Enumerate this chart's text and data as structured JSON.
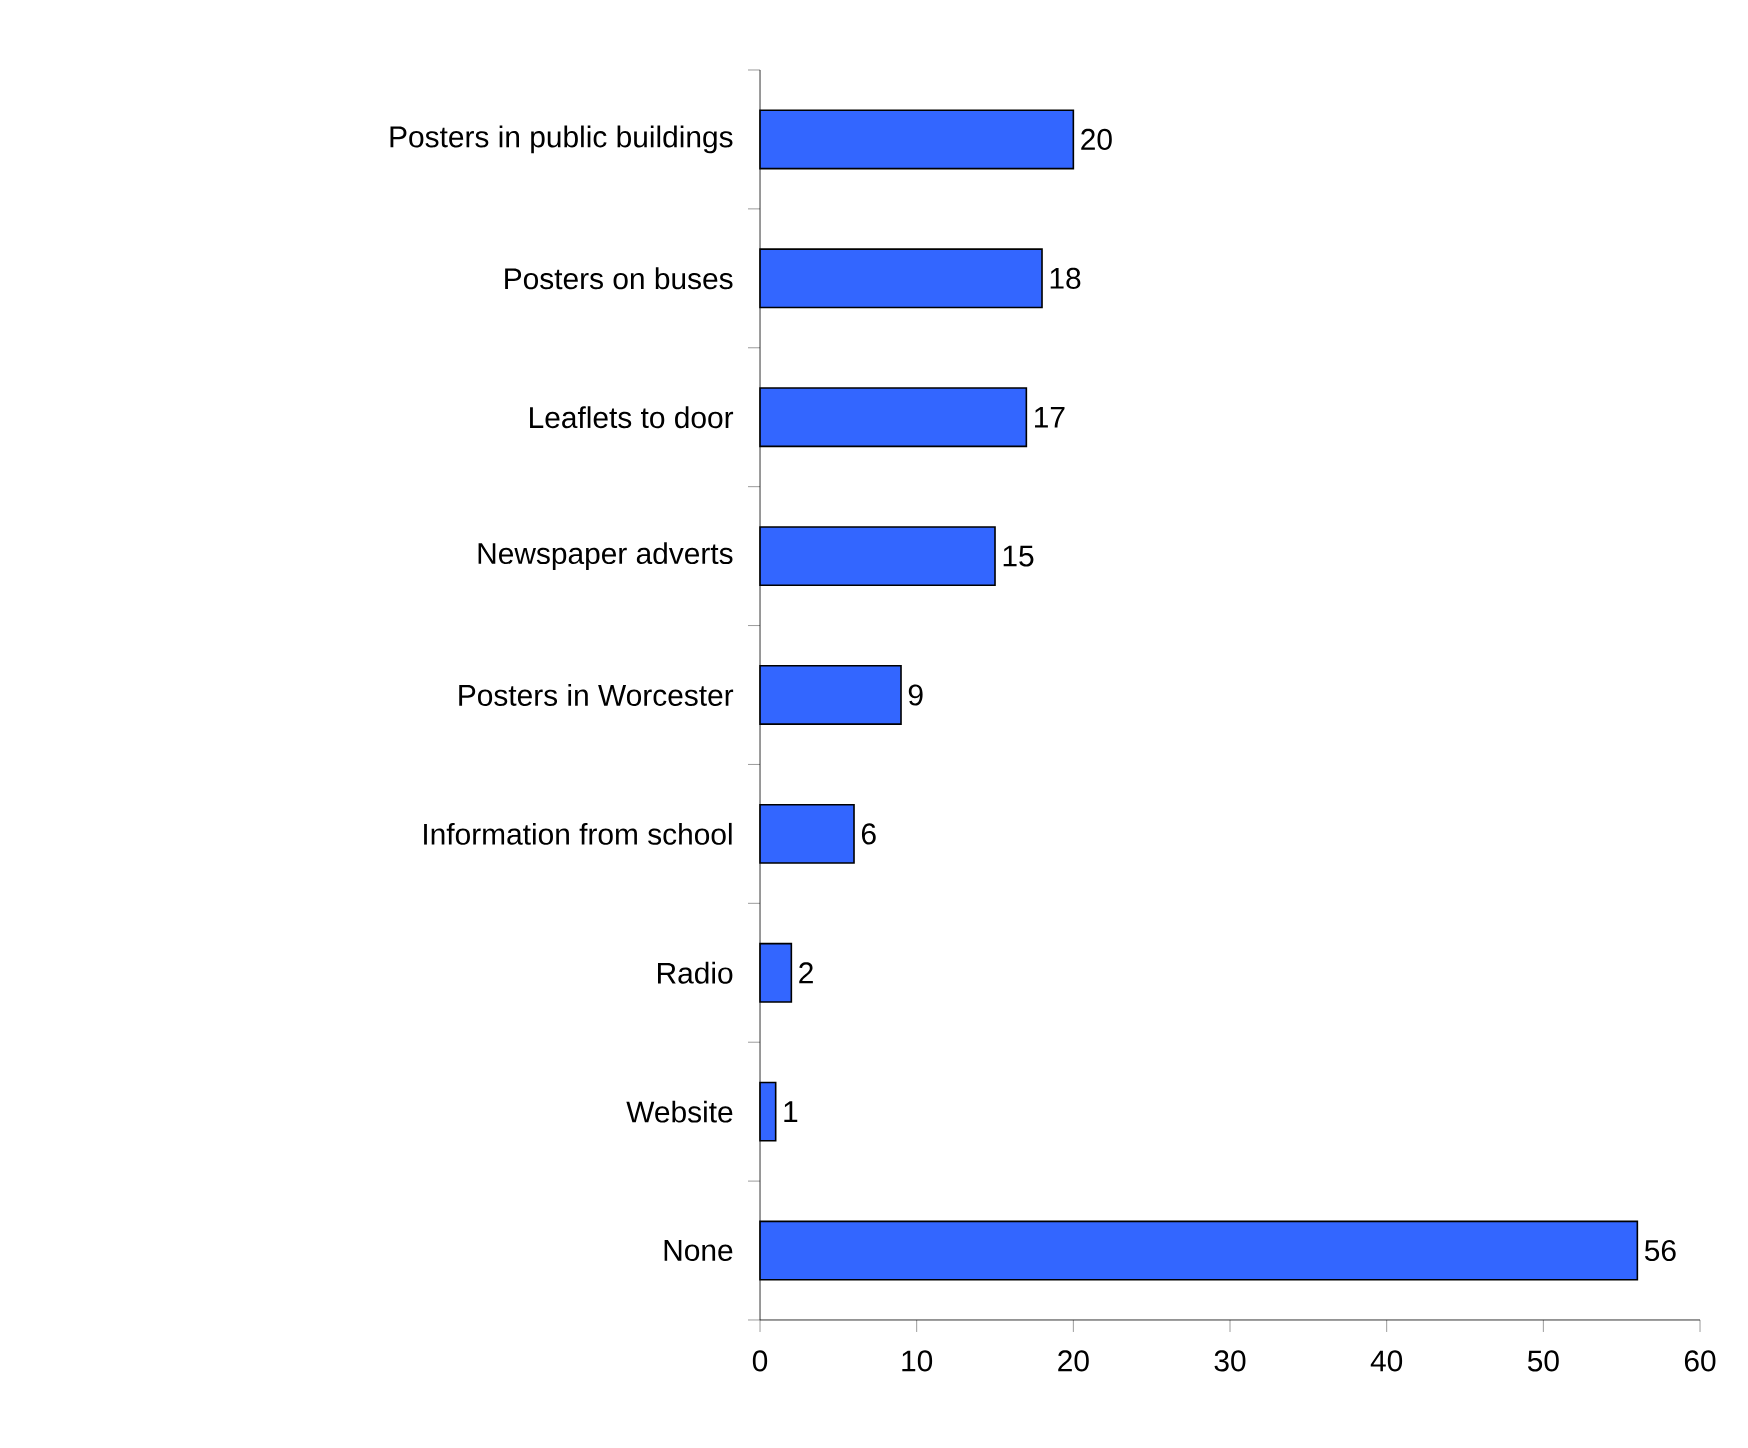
{
  "chart_data": {
    "type": "bar",
    "orientation": "horizontal",
    "categories": [
      "Posters in public buildings",
      "Posters on buses",
      "Leaflets to door",
      "Newspaper adverts",
      "Posters in Worcester",
      "Information from school",
      "Radio",
      "Website",
      "None"
    ],
    "values": [
      20,
      18,
      17,
      15,
      9,
      6,
      2,
      1,
      56
    ],
    "color": "#3366ff",
    "xlim": [
      0,
      60
    ],
    "xticks": [
      0,
      10,
      20,
      30,
      40,
      50,
      60
    ],
    "data_labels": true
  }
}
